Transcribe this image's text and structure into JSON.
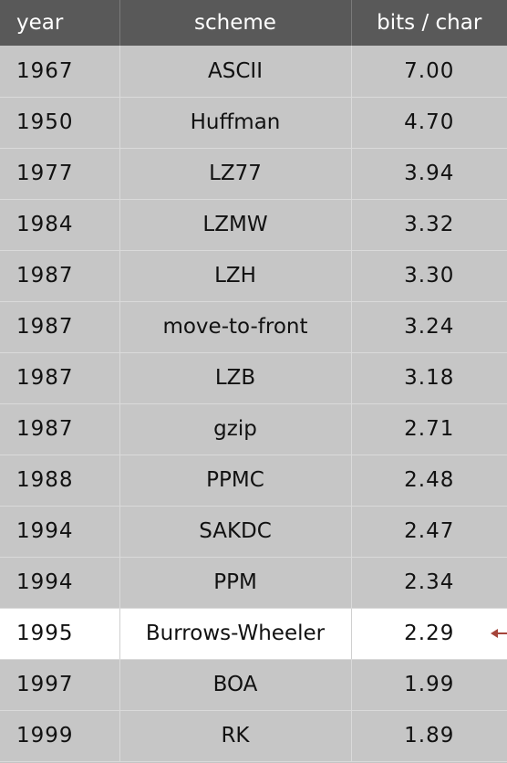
{
  "chart_data": {
    "type": "table",
    "columns": [
      "year",
      "scheme",
      "bits / char"
    ],
    "rows": [
      {
        "year": "1967",
        "scheme": "ASCII",
        "bits": "7.00"
      },
      {
        "year": "1950",
        "scheme": "Huffman",
        "bits": "4.70"
      },
      {
        "year": "1977",
        "scheme": "LZ77",
        "bits": "3.94"
      },
      {
        "year": "1984",
        "scheme": "LZMW",
        "bits": "3.32"
      },
      {
        "year": "1987",
        "scheme": "LZH",
        "bits": "3.30"
      },
      {
        "year": "1987",
        "scheme": "move-to-front",
        "bits": "3.24"
      },
      {
        "year": "1987",
        "scheme": "LZB",
        "bits": "3.18"
      },
      {
        "year": "1987",
        "scheme": "gzip",
        "bits": "2.71"
      },
      {
        "year": "1988",
        "scheme": "PPMC",
        "bits": "2.48"
      },
      {
        "year": "1994",
        "scheme": "SAKDC",
        "bits": "2.47"
      },
      {
        "year": "1994",
        "scheme": "PPM",
        "bits": "2.34"
      },
      {
        "year": "1995",
        "scheme": "Burrows-Wheeler",
        "bits": "2.29"
      },
      {
        "year": "1997",
        "scheme": "BOA",
        "bits": "1.99"
      },
      {
        "year": "1999",
        "scheme": "RK",
        "bits": "1.89"
      }
    ],
    "highlighted_row": 11
  },
  "colors": {
    "header_bg": "#595959",
    "row_bg": "#c6c6c6",
    "highlight_bg": "#ffffff",
    "arrow": "#a5443a"
  }
}
